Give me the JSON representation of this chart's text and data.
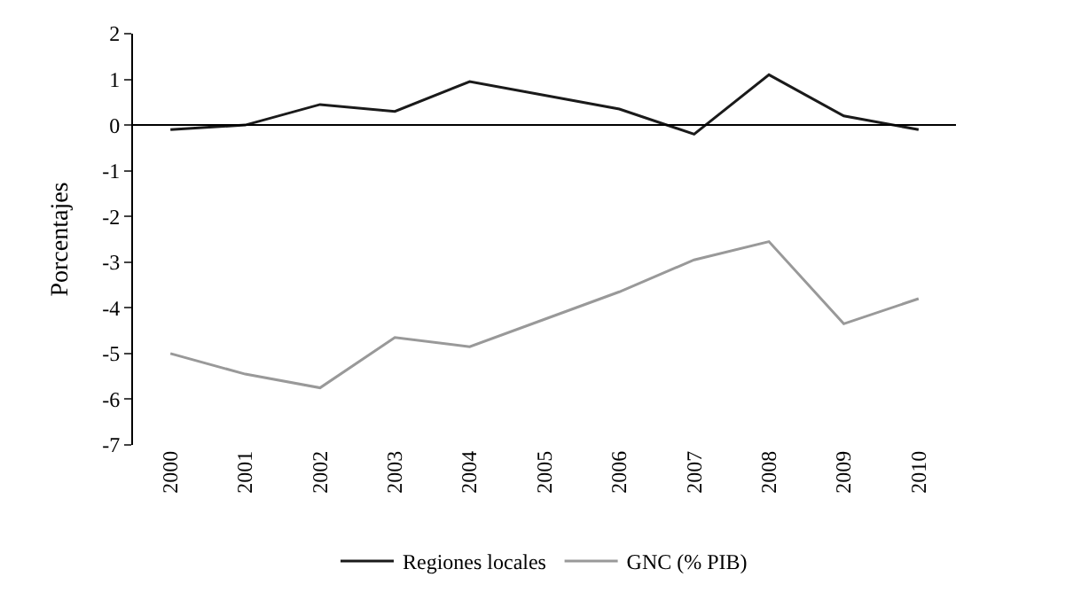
{
  "chart_data": {
    "type": "line",
    "ylabel": "Porcentajes",
    "categories": [
      "2000",
      "2001",
      "2002",
      "2003",
      "2004",
      "2005",
      "2006",
      "2007",
      "2008",
      "2009",
      "2010"
    ],
    "series": [
      {
        "name": "Regiones locales",
        "color": "#1a1a1a",
        "values": [
          -0.1,
          0.0,
          0.45,
          0.3,
          0.95,
          0.65,
          0.35,
          -0.2,
          1.1,
          0.2,
          -0.1
        ]
      },
      {
        "name": "GNC (% PIB)",
        "color": "#999999",
        "values": [
          -5.0,
          -5.45,
          -5.75,
          -4.65,
          -4.85,
          -4.25,
          -3.65,
          -2.95,
          -2.55,
          -4.35,
          -3.8
        ]
      }
    ],
    "ylim": [
      -7,
      2
    ],
    "yticks": [
      -7,
      -6,
      -5,
      -4,
      -3,
      -2,
      -1,
      0,
      1,
      2
    ],
    "ref_lines": [
      {
        "axis": "y",
        "value": 0,
        "color": "#000000"
      }
    ],
    "legend": "bottom",
    "marker": "none",
    "line_style": "solid"
  }
}
